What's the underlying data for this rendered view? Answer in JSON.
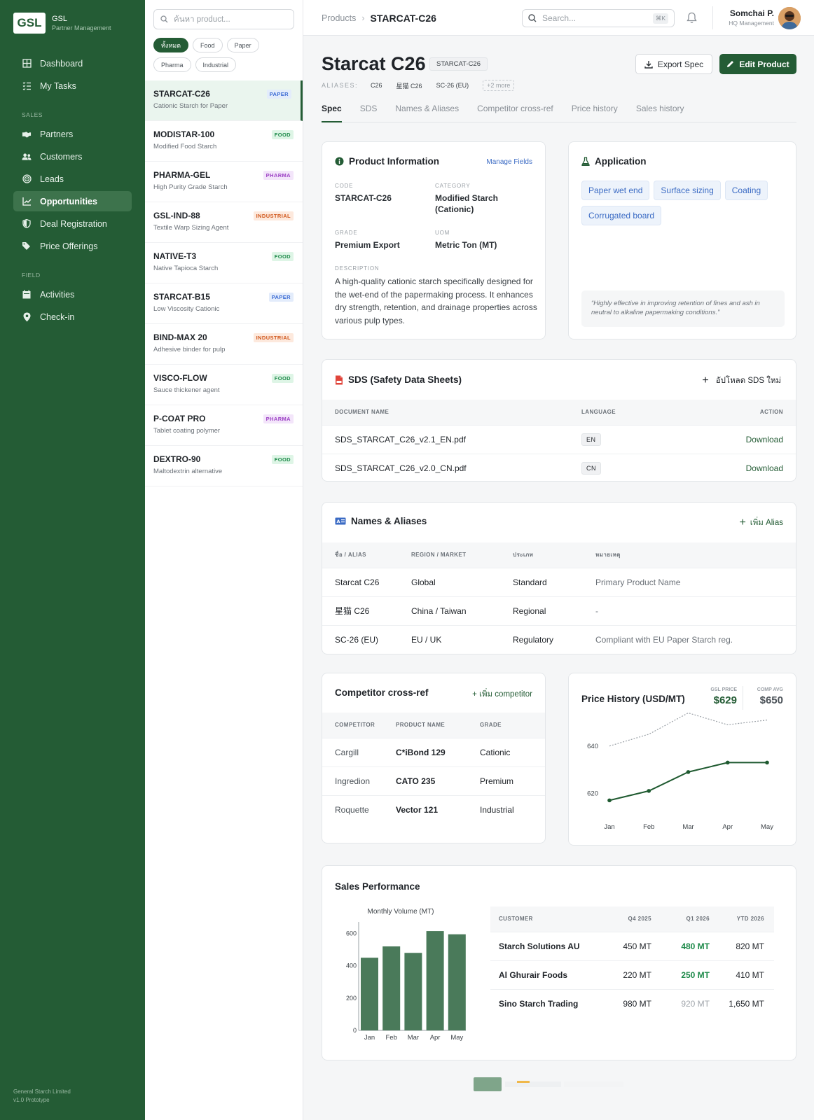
{
  "brand": {
    "logo": "GSL",
    "name": "GSL",
    "subtitle": "Partner Management"
  },
  "nav": {
    "top": [
      {
        "label": "Dashboard",
        "icon": "dashboard-icon"
      },
      {
        "label": "My Tasks",
        "icon": "tasks-icon"
      }
    ],
    "sales_section": "SALES",
    "sales": [
      {
        "label": "Partners",
        "icon": "handshake-icon"
      },
      {
        "label": "Customers",
        "icon": "users-icon"
      },
      {
        "label": "Leads",
        "icon": "target-icon"
      },
      {
        "label": "Opportunities",
        "icon": "chart-icon",
        "active": true
      },
      {
        "label": "Deal Registration",
        "icon": "shield-icon"
      },
      {
        "label": "Price Offerings",
        "icon": "tags-icon"
      }
    ],
    "field_section": "FIELD",
    "field": [
      {
        "label": "Activities",
        "icon": "calendar-icon"
      },
      {
        "label": "Check-in",
        "icon": "map-pin-icon"
      }
    ],
    "footer_company": "General Starch Limited",
    "footer_version": "v1.0 Prototype"
  },
  "product_list": {
    "search_placeholder": "ค้นหา product...",
    "filters": [
      "ทั้งหมด",
      "Food",
      "Paper",
      "Pharma",
      "Industrial"
    ],
    "items": [
      {
        "name": "STARCAT-C26",
        "desc": "Cationic Starch for Paper",
        "tag": "PAPER",
        "kind": "paper"
      },
      {
        "name": "MODISTAR-100",
        "desc": "Modified Food Starch",
        "tag": "FOOD",
        "kind": "food"
      },
      {
        "name": "PHARMA-GEL",
        "desc": "High Purity Grade Starch",
        "tag": "PHARMA",
        "kind": "pharma"
      },
      {
        "name": "GSL-IND-88",
        "desc": "Textile Warp Sizing Agent",
        "tag": "INDUSTRIAL",
        "kind": "industrial"
      },
      {
        "name": "NATIVE-T3",
        "desc": "Native Tapioca Starch",
        "tag": "FOOD",
        "kind": "food"
      },
      {
        "name": "STARCAT-B15",
        "desc": "Low Viscosity Cationic",
        "tag": "PAPER",
        "kind": "paper"
      },
      {
        "name": "BIND-MAX 20",
        "desc": "Adhesive binder for pulp",
        "tag": "INDUSTRIAL",
        "kind": "industrial"
      },
      {
        "name": "VISCO-FLOW",
        "desc": "Sauce thickener agent",
        "tag": "FOOD",
        "kind": "food"
      },
      {
        "name": "P-COAT PRO",
        "desc": "Tablet coating polymer",
        "tag": "PHARMA",
        "kind": "pharma"
      },
      {
        "name": "DEXTRO-90",
        "desc": "Maltodextrin alternative",
        "tag": "FOOD",
        "kind": "food"
      }
    ]
  },
  "header": {
    "breadcrumb_root": "Products",
    "breadcrumb_current": "STARCAT-C26",
    "search_placeholder": "Search...",
    "search_shortcut": "⌘K",
    "user_name": "Somchai P.",
    "user_role": "HQ Management"
  },
  "product": {
    "title": "Starcat C26",
    "code_badge": "STARCAT-C26",
    "aliases_label": "ALIASES:",
    "aliases": [
      "C26",
      "星猫 C26",
      "SC-26 (EU)"
    ],
    "aliases_more": "+2 more",
    "export_label": "Export Spec",
    "edit_label": "Edit Product",
    "tabs": [
      "Spec",
      "SDS",
      "Names & Aliases",
      "Competitor cross-ref",
      "Price history",
      "Sales history"
    ]
  },
  "info": {
    "title": "Product Information",
    "manage": "Manage Fields",
    "code_label": "CODE",
    "code": "STARCAT-C26",
    "category_label": "CATEGORY",
    "category": "Modified Starch (Cationic)",
    "grade_label": "GRADE",
    "grade": "Premium Export",
    "uom_label": "UOM",
    "uom": "Metric Ton (MT)",
    "desc_label": "DESCRIPTION",
    "description": "A high-quality cationic starch specifically designed for the wet-end of the papermaking process. It enhances dry strength, retention, and drainage properties across various pulp types."
  },
  "application": {
    "title": "Application",
    "tags": [
      "Paper wet end",
      "Surface sizing",
      "Coating",
      "Corrugated board"
    ],
    "quote": "“Highly effective in improving retention of fines and ash in neutral to alkaline papermaking conditions.”"
  },
  "sds": {
    "title": "SDS (Safety Data Sheets)",
    "upload": "อัปโหลด SDS ใหม่",
    "headers": [
      "DOCUMENT NAME",
      "LANGUAGE",
      "ACTION"
    ],
    "rows": [
      {
        "name": "SDS_STARCAT_C26_v2.1_EN.pdf",
        "lang": "EN",
        "action": "Download"
      },
      {
        "name": "SDS_STARCAT_C26_v2.0_CN.pdf",
        "lang": "CN",
        "action": "Download"
      }
    ]
  },
  "names": {
    "title": "Names & Aliases",
    "add": "เพิ่ม Alias",
    "headers": [
      "ชื่อ / ALIAS",
      "REGION / MARKET",
      "ประเภท",
      "หมายเหตุ"
    ],
    "rows": [
      {
        "alias": "Starcat C26",
        "region": "Global",
        "type": "Standard",
        "note": "Primary Product Name"
      },
      {
        "alias": "星猫 C26",
        "region": "China / Taiwan",
        "type": "Regional",
        "note": "-"
      },
      {
        "alias": "SC-26 (EU)",
        "region": "EU / UK",
        "type": "Regulatory",
        "note": "Compliant with EU Paper Starch reg."
      }
    ]
  },
  "competitor": {
    "title": "Competitor cross-ref",
    "add": "+ เพิ่ม competitor",
    "headers": [
      "COMPETITOR",
      "PRODUCT NAME",
      "GRADE"
    ],
    "rows": [
      {
        "competitor": "Cargill",
        "product": "C*iBond 129",
        "grade": "Cationic"
      },
      {
        "competitor": "Ingredion",
        "product": "CATO 235",
        "grade": "Premium"
      },
      {
        "competitor": "Roquette",
        "product": "Vector 121",
        "grade": "Industrial"
      }
    ]
  },
  "price": {
    "title": "Price History (USD/MT)",
    "gsl_label": "GSL PRICE",
    "gsl_value": "$629",
    "comp_label": "COMP AVG",
    "comp_value": "$650"
  },
  "sales": {
    "title": "Sales Performance",
    "headers": [
      "CUSTOMER",
      "Q4 2025",
      "Q1 2026",
      "YTD 2026"
    ],
    "rows": [
      {
        "customer": "Starch Solutions AU",
        "q4": "450 MT",
        "q1": "480 MT",
        "ytd": "820 MT",
        "q1_state": "up"
      },
      {
        "customer": "Al Ghurair Foods",
        "q4": "220 MT",
        "q1": "250 MT",
        "ytd": "410 MT",
        "q1_state": "up"
      },
      {
        "customer": "Sino Starch Trading",
        "q4": "980 MT",
        "q1": "920 MT",
        "ytd": "1,650 MT",
        "q1_state": "down"
      }
    ]
  },
  "chart_data": [
    {
      "type": "line",
      "title": "",
      "x": [
        "Jan",
        "Feb",
        "Mar",
        "Apr",
        "May"
      ],
      "ylim": [
        610,
        650
      ],
      "yticks": [
        620,
        640
      ],
      "series": [
        {
          "values": [
            617,
            621,
            629,
            633,
            633
          ],
          "color": "#1f5a30",
          "style": "solid"
        },
        {
          "values": [
            640,
            645,
            654,
            649,
            651
          ],
          "color": "#9aa0a6",
          "style": "dashed"
        }
      ]
    },
    {
      "type": "bar",
      "title": "Monthly Volume (MT)",
      "categories": [
        "Jan",
        "Feb",
        "Mar",
        "Apr",
        "May"
      ],
      "values": [
        450,
        520,
        480,
        615,
        595
      ],
      "ylim": [
        0,
        650
      ],
      "yticks": [
        0,
        200,
        400,
        600
      ],
      "color": "#4a7a5a"
    }
  ]
}
